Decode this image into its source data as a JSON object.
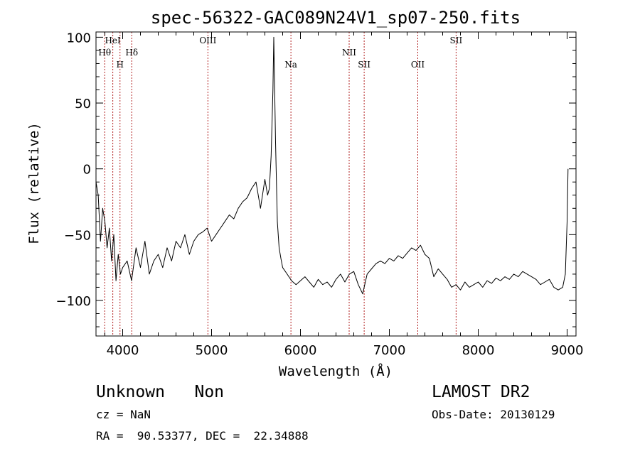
{
  "chart_data": {
    "type": "line",
    "title": "spec-56322-GAC089N24V1_sp07-250.fits",
    "xlabel": "Wavelength (Å)",
    "ylabel": "Flux (relative)",
    "xlim": [
      3700,
      9100
    ],
    "ylim": [
      -127,
      104
    ],
    "xticks": [
      4000,
      5000,
      6000,
      7000,
      8000,
      9000
    ],
    "xtick_labels": [
      "4000",
      "5000",
      "6000",
      "7000",
      "8000",
      "9000"
    ],
    "yticks": [
      -100,
      -50,
      0,
      50,
      100
    ],
    "ytick_labels": [
      "−100",
      "−50",
      "0",
      "50",
      "100"
    ],
    "grid": false,
    "lines": [
      {
        "label": "Hθ",
        "x": 3798,
        "row": 2
      },
      {
        "label": "HeI",
        "x": 3889,
        "row": 1
      },
      {
        "label": "H",
        "x": 3970,
        "row": 3
      },
      {
        "label": "Hδ",
        "x": 4102,
        "row": 2
      },
      {
        "label": "OIII",
        "x": 4959,
        "row": 1
      },
      {
        "label": "Na",
        "x": 5893,
        "row": 3
      },
      {
        "label": "NII",
        "x": 6548,
        "row": 2
      },
      {
        "label": "SII",
        "x": 6717,
        "row": 3
      },
      {
        "label": "OII",
        "x": 7320,
        "row": 3
      },
      {
        "label": "SII",
        "x": 7751,
        "row": 1
      }
    ],
    "series": [
      {
        "x": [
          3700,
          3725,
          3750,
          3775,
          3800,
          3825,
          3850,
          3875,
          3900,
          3925,
          3950,
          3975,
          4000,
          4050,
          4100,
          4150,
          4200,
          4250,
          4300,
          4350,
          4400,
          4450,
          4500,
          4550,
          4600,
          4650,
          4700,
          4750,
          4800,
          4850,
          4900,
          4950,
          5000,
          5050,
          5100,
          5150,
          5200,
          5250,
          5300,
          5350,
          5400,
          5450,
          5500,
          5550,
          5600,
          5630,
          5650,
          5670,
          5690,
          5700,
          5720,
          5740,
          5760,
          5780,
          5800,
          5850,
          5900,
          5950,
          6000,
          6050,
          6100,
          6150,
          6200,
          6250,
          6300,
          6350,
          6400,
          6450,
          6500,
          6550,
          6600,
          6650,
          6700,
          6750,
          6800,
          6850,
          6900,
          6950,
          7000,
          7050,
          7100,
          7150,
          7200,
          7250,
          7300,
          7350,
          7400,
          7450,
          7500,
          7550,
          7600,
          7650,
          7700,
          7750,
          7800,
          7850,
          7900,
          7950,
          8000,
          8050,
          8100,
          8150,
          8200,
          8250,
          8300,
          8350,
          8400,
          8450,
          8500,
          8550,
          8600,
          8650,
          8700,
          8750,
          8800,
          8850,
          8900,
          8950,
          8980,
          9000,
          9010
        ],
        "y": [
          -10,
          -20,
          -55,
          -30,
          -40,
          -60,
          -45,
          -70,
          -50,
          -85,
          -65,
          -80,
          -75,
          -70,
          -85,
          -60,
          -75,
          -55,
          -80,
          -70,
          -65,
          -75,
          -60,
          -70,
          -55,
          -60,
          -50,
          -65,
          -55,
          -50,
          -48,
          -45,
          -55,
          -50,
          -45,
          -40,
          -35,
          -38,
          -30,
          -25,
          -22,
          -15,
          -10,
          -30,
          -8,
          -20,
          -15,
          10,
          60,
          100,
          20,
          -40,
          -60,
          -68,
          -75,
          -80,
          -85,
          -88,
          -85,
          -82,
          -86,
          -90,
          -84,
          -88,
          -86,
          -90,
          -84,
          -80,
          -86,
          -80,
          -78,
          -88,
          -95,
          -80,
          -76,
          -72,
          -70,
          -72,
          -68,
          -70,
          -66,
          -68,
          -64,
          -60,
          -62,
          -58,
          -65,
          -68,
          -82,
          -76,
          -80,
          -84,
          -90,
          -88,
          -92,
          -86,
          -90,
          -88,
          -86,
          -90,
          -85,
          -87,
          -83,
          -85,
          -82,
          -84,
          -80,
          -82,
          -78,
          -80,
          -82,
          -84,
          -88,
          -86,
          -84,
          -90,
          -92,
          -90,
          -80,
          -40,
          0
        ]
      }
    ]
  },
  "footer": {
    "left_line1": "Unknown   Non",
    "left_line2": "cz = NaN",
    "left_line3": "RA =  90.53377, DEC =  22.34888",
    "right_line1": "LAMOST DR2",
    "right_line2": "Obs-Date: 20130129"
  }
}
